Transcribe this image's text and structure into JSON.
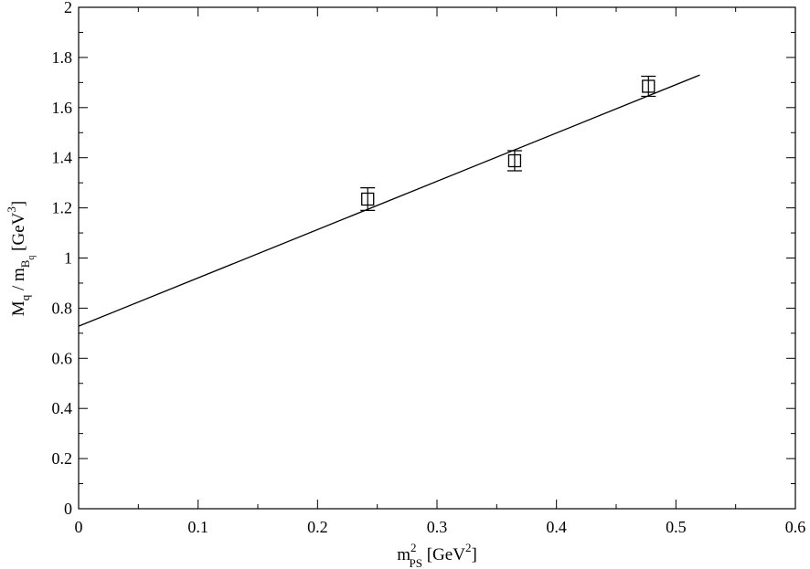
{
  "chart_data": {
    "type": "scatter",
    "title": "",
    "xlabel": {
      "main": "m",
      "sup": "2",
      "sub": "PS",
      "unit_prefix": " [GeV",
      "unit_sup": "2",
      "unit_suffix": "]"
    },
    "ylabel": {
      "main": "M",
      "sub1": "q",
      "mid": " / m",
      "sub2": "B",
      "subsub": "q",
      "unit_prefix": " [GeV",
      "unit_sup": "3",
      "unit_suffix": "]"
    },
    "xlim": [
      0,
      0.6
    ],
    "ylim": [
      0,
      2
    ],
    "xticks": [
      "0",
      "0.1",
      "0.2",
      "0.3",
      "0.4",
      "0.5",
      "0.6"
    ],
    "yticks": [
      "0",
      "0.2",
      "0.4",
      "0.6",
      "0.8",
      "1",
      "1.2",
      "1.4",
      "1.6",
      "1.8",
      "2"
    ],
    "grid": false,
    "series": [
      {
        "marker": "open-square",
        "x": [
          0.242,
          0.365,
          0.477
        ],
        "y": [
          1.235,
          1.388,
          1.685
        ],
        "yerr": [
          0.045,
          0.04,
          0.04
        ]
      }
    ],
    "fit_line": {
      "x": [
        0,
        0.52
      ],
      "y": [
        0.728,
        1.73
      ]
    }
  }
}
